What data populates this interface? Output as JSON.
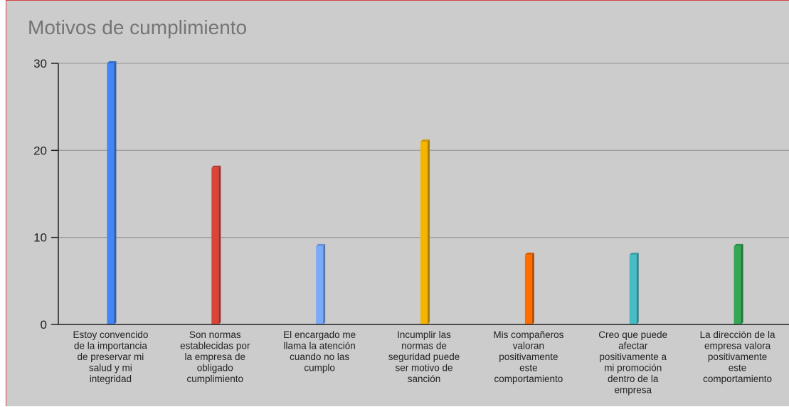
{
  "colors": {
    "background": "#cccccc",
    "frame_border": "#d64541",
    "grid": "#9e9e9e",
    "axis": "#222222",
    "title": "#757575"
  },
  "chart_data": {
    "type": "bar",
    "title": "Motivos de cumplimiento",
    "xlabel": "",
    "ylabel": "",
    "ylim": [
      0,
      30
    ],
    "yticks": [
      0,
      10,
      20,
      30
    ],
    "grid": true,
    "legend": "none",
    "style": "3d",
    "categories": [
      "Estoy convencido de la importancia de preservar mi salud y mi integridad",
      "Son normas establecidas por la empresa de obligado cumplimiento",
      "El encargado me llama la atención cuando no las cumplo",
      "Incumplir las normas de seguridad puede ser motivo de sanción",
      "Mis compañeros valoran positivamente este comportamiento",
      "Creo que puede afectar positivamente a mi promoción dentro de la empresa",
      "La dirección de la empresa valora positivamente este comportamiento"
    ],
    "category_lines": [
      [
        "Estoy convencido",
        "de la importancia",
        "de preservar mi",
        "salud y mi",
        "integridad"
      ],
      [
        "Son normas",
        "establecidas por",
        "la empresa de",
        "obligado",
        "cumplimiento"
      ],
      [
        "El encargado me",
        "llama la atención",
        "cuando no las",
        "cumplo"
      ],
      [
        "Incumplir las",
        "normas de",
        "seguridad puede",
        "ser motivo de",
        "sanción"
      ],
      [
        "Mis compañeros",
        "valoran",
        "positivamente",
        "este",
        "comportamiento"
      ],
      [
        "Creo que puede",
        "afectar",
        "positivamente a",
        "mi promoción",
        "dentro de la",
        "empresa"
      ],
      [
        "La dirección de la",
        "empresa valora",
        "positivamente",
        "este",
        "comportamiento"
      ]
    ],
    "values": [
      30,
      18,
      9,
      21,
      8,
      8,
      9
    ],
    "bar_colors": [
      "#4285f4",
      "#db4437",
      "#7baaf7",
      "#f4b400",
      "#ff6d00",
      "#46bdc6",
      "#34a853"
    ]
  }
}
